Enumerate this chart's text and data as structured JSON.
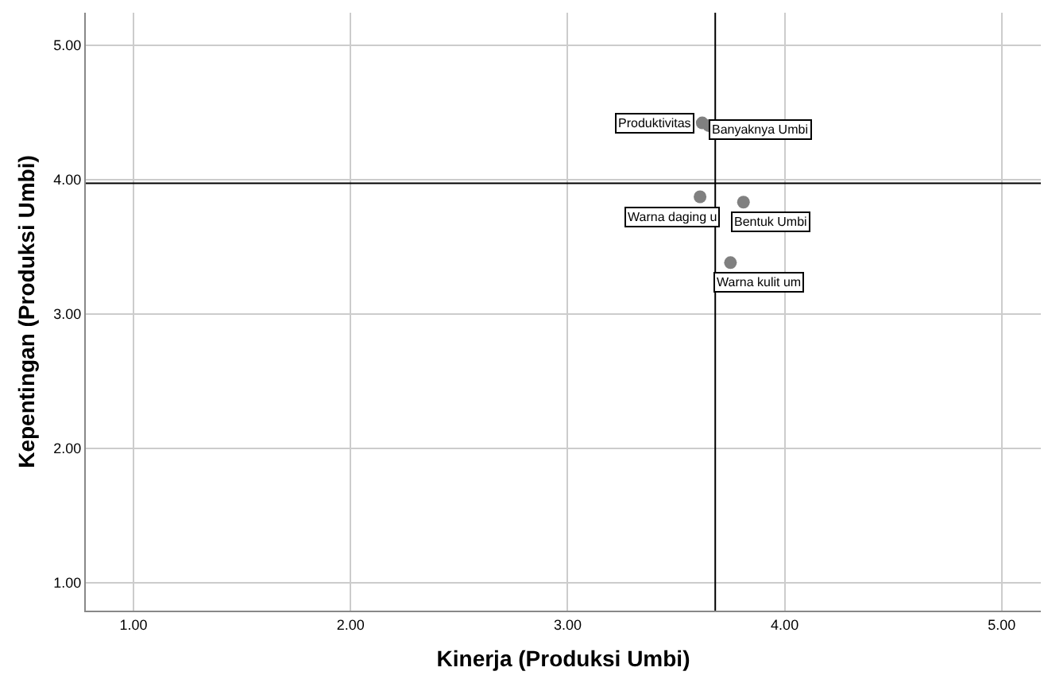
{
  "chart_data": {
    "type": "scatter",
    "xlabel": "Kinerja (Produksi Umbi)",
    "ylabel": "Kepentingan (Produksi Umbi)",
    "x": [
      3.62,
      3.65,
      3.61,
      3.81,
      3.75
    ],
    "series": [
      {
        "color": "#808080",
        "values": [
          4.42,
          4.4,
          3.87,
          3.83,
          3.38
        ]
      }
    ],
    "marker": "circle",
    "annotations": [
      {
        "text": "Produktivitas",
        "x": 3.62,
        "y": 4.42
      },
      {
        "text": "Banyaknya Umbi",
        "x": 3.65,
        "y": 4.4
      },
      {
        "text": "Warna daging u",
        "x": 3.61,
        "y": 3.87
      },
      {
        "text": "Bentuk Umbi",
        "x": 3.81,
        "y": 3.83
      },
      {
        "text": "Warna kulit um",
        "x": 3.75,
        "y": 3.38
      }
    ],
    "ref_lines": [
      {
        "axis": "x",
        "value": 3.68,
        "color": "#000000"
      },
      {
        "axis": "y",
        "value": 3.97,
        "color": "#000000"
      }
    ],
    "xlim": [
      0.78,
      5.18
    ],
    "ylim": [
      0.79,
      5.24
    ],
    "xticks": [
      {
        "value": 1,
        "label": "1.00"
      },
      {
        "value": 2,
        "label": "2.00"
      },
      {
        "value": 3,
        "label": "3.00"
      },
      {
        "value": 4,
        "label": "4.00"
      },
      {
        "value": 5,
        "label": "5.00"
      }
    ],
    "yticks": [
      {
        "value": 1,
        "label": "1.00"
      },
      {
        "value": 2,
        "label": "2.00"
      },
      {
        "value": 3,
        "label": "3.00"
      },
      {
        "value": 4,
        "label": "4.00"
      },
      {
        "value": 5,
        "label": "5.00"
      }
    ],
    "grid": true
  }
}
